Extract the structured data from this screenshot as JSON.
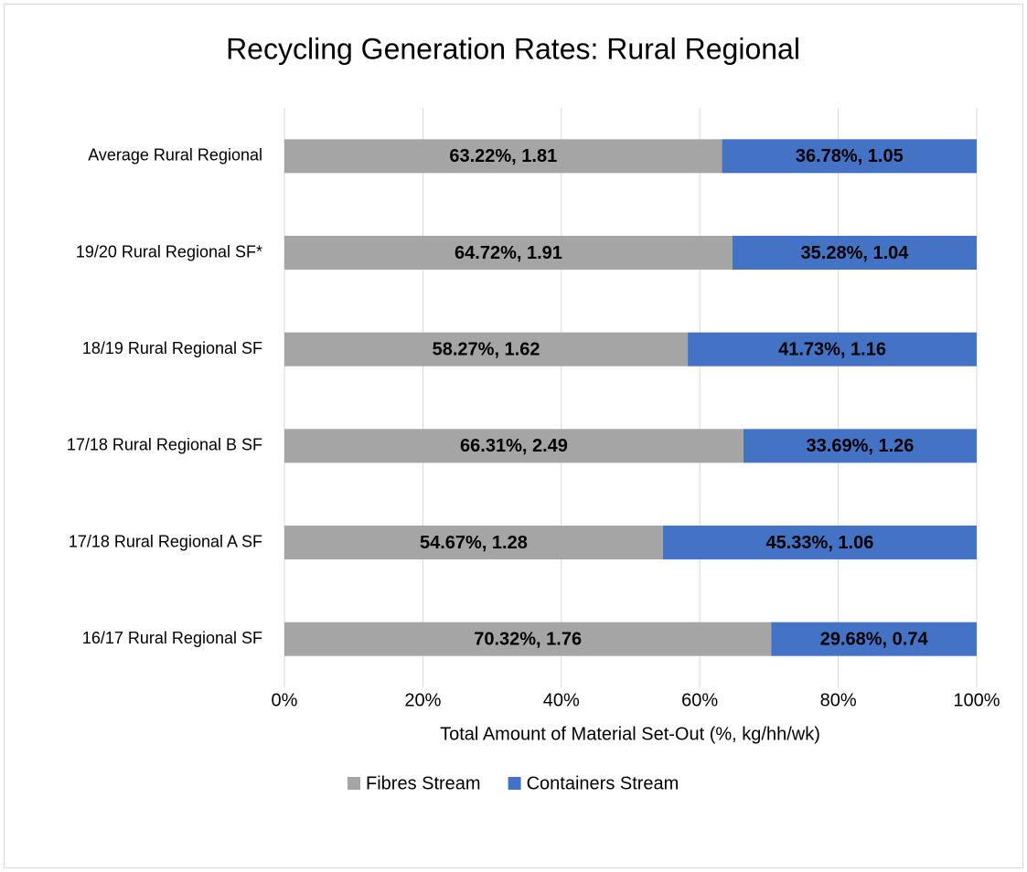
{
  "chart_data": {
    "type": "stacked_barh",
    "title": "Recycling Generation Rates: Rural Regional",
    "xlabel": "Total Amount of Material Set-Out (%, kg/hh/wk)",
    "categories": [
      "Average Rural Regional",
      "19/20 Rural Regional SF*",
      "18/19 Rural Regional SF",
      "17/18 Rural Regional B SF",
      "17/18 Rural Regional A SF",
      "16/17 Rural Regional SF"
    ],
    "series": [
      {
        "name": "Fibres Stream",
        "color": "#a5a5a5",
        "values": [
          63.22,
          64.72,
          58.27,
          66.31,
          54.67,
          70.32
        ],
        "value_labels": [
          "63.22%,  1.81",
          "64.72%,  1.91",
          "58.27%,  1.62",
          "66.31%,  2.49",
          "54.67%,  1.28",
          "70.32%,  1.76"
        ]
      },
      {
        "name": "Containers Stream",
        "color": "#4472c4",
        "values": [
          36.78,
          35.28,
          41.73,
          33.69,
          45.33,
          29.68
        ],
        "value_labels": [
          "36.78%,  1.05",
          "35.28%,  1.04",
          "41.73%,  1.16",
          "33.69%,  1.26",
          "45.33%,  1.06",
          "29.68%,  0.74"
        ]
      }
    ],
    "xlim": [
      0,
      100
    ],
    "xticks": [
      {
        "value": 0,
        "label": "0%"
      },
      {
        "value": 20,
        "label": "20%"
      },
      {
        "value": 40,
        "label": "40%"
      },
      {
        "value": 60,
        "label": "60%"
      },
      {
        "value": 80,
        "label": "80%"
      },
      {
        "value": 100,
        "label": "100%"
      }
    ],
    "grid": true,
    "legend": "bottom"
  }
}
